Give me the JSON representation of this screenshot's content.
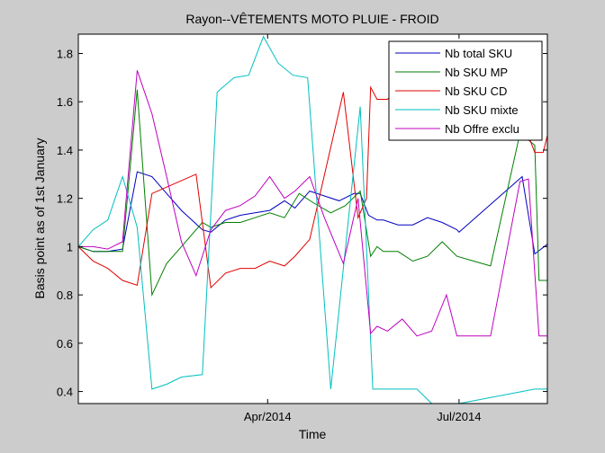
{
  "chart_data": {
    "type": "line",
    "title": "Rayon--VÊTEMENTS MOTO PLUIE - FROID",
    "xlabel": "Time",
    "ylabel": "Basis point as of 1st January",
    "xlim": [
      "2014-01-01",
      "2014-08-12"
    ],
    "ylim": [
      0.35,
      1.88
    ],
    "yticks": [
      0.4,
      0.6,
      0.8,
      1,
      1.2,
      1.4,
      1.6,
      1.8
    ],
    "yticklabels": [
      "0.4",
      "0.6",
      "0.8",
      "1",
      "1.2",
      "1.4",
      "1.6",
      "1.8"
    ],
    "xticks": [
      "2014-04-01",
      "2014-07-01"
    ],
    "xticklabels": [
      "Apr/2014",
      "Jul/2014"
    ],
    "grid": false,
    "legend_position": "top-right",
    "background": "#cccccc",
    "plot_background": "#ffffff",
    "series": [
      {
        "name": "Nb total SKU",
        "color": "#0000bf",
        "points": [
          [
            "2014-01-01",
            1.0
          ],
          [
            "2014-01-08",
            0.98
          ],
          [
            "2014-01-15",
            0.98
          ],
          [
            "2014-01-22",
            0.99
          ],
          [
            "2014-01-29",
            1.31
          ],
          [
            "2014-02-05",
            1.29
          ],
          [
            "2014-02-12",
            1.22
          ],
          [
            "2014-02-19",
            1.15
          ],
          [
            "2014-03-01",
            1.07
          ],
          [
            "2014-03-05",
            1.06
          ],
          [
            "2014-03-12",
            1.11
          ],
          [
            "2014-03-19",
            1.13
          ],
          [
            "2014-03-26",
            1.14
          ],
          [
            "2014-04-02",
            1.15
          ],
          [
            "2014-04-09",
            1.19
          ],
          [
            "2014-04-14",
            1.16
          ],
          [
            "2014-04-21",
            1.23
          ],
          [
            "2014-04-28",
            1.21
          ],
          [
            "2014-05-05",
            1.19
          ],
          [
            "2014-05-12",
            1.22
          ],
          [
            "2014-05-15",
            1.22
          ],
          [
            "2014-05-19",
            1.13
          ],
          [
            "2014-05-23",
            1.11
          ],
          [
            "2014-05-26",
            1.11
          ],
          [
            "2014-06-02",
            1.09
          ],
          [
            "2014-06-09",
            1.09
          ],
          [
            "2014-06-16",
            1.12
          ],
          [
            "2014-06-23",
            1.1
          ],
          [
            "2014-06-30",
            1.07
          ],
          [
            "2014-07-01",
            1.06
          ],
          [
            "2014-07-31",
            1.29
          ],
          [
            "2014-08-06",
            0.97
          ],
          [
            "2014-08-12",
            1.01
          ]
        ]
      },
      {
        "name": "Nb SKU MP",
        "color": "#007f00",
        "points": [
          [
            "2014-01-01",
            1.0
          ],
          [
            "2014-01-08",
            0.98
          ],
          [
            "2014-01-15",
            0.98
          ],
          [
            "2014-01-22",
            0.98
          ],
          [
            "2014-01-29",
            1.65
          ],
          [
            "2014-02-05",
            0.8
          ],
          [
            "2014-02-12",
            0.93
          ],
          [
            "2014-02-19",
            1.0
          ],
          [
            "2014-03-01",
            1.1
          ],
          [
            "2014-03-05",
            1.08
          ],
          [
            "2014-03-12",
            1.1
          ],
          [
            "2014-03-19",
            1.1
          ],
          [
            "2014-03-26",
            1.12
          ],
          [
            "2014-04-02",
            1.14
          ],
          [
            "2014-04-09",
            1.12
          ],
          [
            "2014-04-16",
            1.22
          ],
          [
            "2014-04-23",
            1.18
          ],
          [
            "2014-05-01",
            1.14
          ],
          [
            "2014-05-08",
            1.17
          ],
          [
            "2014-05-15",
            1.23
          ],
          [
            "2014-05-20",
            0.96
          ],
          [
            "2014-05-23",
            1.0
          ],
          [
            "2014-05-26",
            0.98
          ],
          [
            "2014-06-02",
            0.98
          ],
          [
            "2014-06-09",
            0.94
          ],
          [
            "2014-06-16",
            0.96
          ],
          [
            "2014-06-23",
            1.02
          ],
          [
            "2014-06-30",
            0.96
          ],
          [
            "2014-07-08",
            0.94
          ],
          [
            "2014-07-16",
            0.92
          ],
          [
            "2014-07-30",
            1.47
          ],
          [
            "2014-08-06",
            1.42
          ],
          [
            "2014-08-08",
            0.86
          ],
          [
            "2014-08-12",
            0.86
          ]
        ]
      },
      {
        "name": "Nb SKU CD",
        "color": "#e00000",
        "points": [
          [
            "2014-01-01",
            1.0
          ],
          [
            "2014-01-08",
            0.94
          ],
          [
            "2014-01-15",
            0.91
          ],
          [
            "2014-01-22",
            0.86
          ],
          [
            "2014-01-29",
            0.84
          ],
          [
            "2014-02-05",
            1.22
          ],
          [
            "2014-02-26",
            1.3
          ],
          [
            "2014-03-05",
            0.83
          ],
          [
            "2014-03-12",
            0.89
          ],
          [
            "2014-03-19",
            0.91
          ],
          [
            "2014-03-26",
            0.91
          ],
          [
            "2014-04-02",
            0.94
          ],
          [
            "2014-04-09",
            0.92
          ],
          [
            "2014-04-14",
            0.96
          ],
          [
            "2014-04-21",
            1.03
          ],
          [
            "2014-05-07",
            1.64
          ],
          [
            "2014-05-14",
            1.12
          ],
          [
            "2014-05-18",
            1.2
          ],
          [
            "2014-05-20",
            1.66
          ],
          [
            "2014-05-23",
            1.61
          ],
          [
            "2014-05-28",
            1.61
          ],
          [
            "2014-06-04",
            1.67
          ],
          [
            "2014-06-11",
            1.65
          ],
          [
            "2014-07-30",
            1.55
          ],
          [
            "2014-08-06",
            1.39
          ],
          [
            "2014-08-10",
            1.39
          ],
          [
            "2014-08-12",
            1.46
          ]
        ]
      },
      {
        "name": "Nb SKU mixte",
        "color": "#00bfbf",
        "points": [
          [
            "2014-01-01",
            1.0
          ],
          [
            "2014-01-08",
            1.07
          ],
          [
            "2014-01-15",
            1.11
          ],
          [
            "2014-01-22",
            1.29
          ],
          [
            "2014-01-29",
            1.08
          ],
          [
            "2014-02-05",
            0.41
          ],
          [
            "2014-02-12",
            0.43
          ],
          [
            "2014-02-19",
            0.46
          ],
          [
            "2014-03-01",
            0.47
          ],
          [
            "2014-03-08",
            1.64
          ],
          [
            "2014-03-16",
            1.7
          ],
          [
            "2014-03-23",
            1.71
          ],
          [
            "2014-03-30",
            1.87
          ],
          [
            "2014-04-06",
            1.76
          ],
          [
            "2014-04-13",
            1.71
          ],
          [
            "2014-04-20",
            1.7
          ],
          [
            "2014-05-01",
            0.41
          ],
          [
            "2014-05-15",
            1.58
          ],
          [
            "2014-05-21",
            0.41
          ],
          [
            "2014-06-11",
            0.41
          ],
          [
            "2014-06-18",
            0.35
          ],
          [
            "2014-07-01",
            0.35
          ],
          [
            "2014-08-06",
            0.41
          ],
          [
            "2014-08-12",
            0.41
          ]
        ]
      },
      {
        "name": "Nb Offre exclu",
        "color": "#bf00bf",
        "points": [
          [
            "2014-01-01",
            1.0
          ],
          [
            "2014-01-08",
            1.0
          ],
          [
            "2014-01-15",
            0.99
          ],
          [
            "2014-01-22",
            1.02
          ],
          [
            "2014-01-29",
            1.73
          ],
          [
            "2014-02-05",
            1.55
          ],
          [
            "2014-02-12",
            1.29
          ],
          [
            "2014-02-19",
            1.02
          ],
          [
            "2014-02-26",
            0.88
          ],
          [
            "2014-03-05",
            1.07
          ],
          [
            "2014-03-12",
            1.15
          ],
          [
            "2014-03-19",
            1.17
          ],
          [
            "2014-03-26",
            1.21
          ],
          [
            "2014-04-02",
            1.29
          ],
          [
            "2014-04-09",
            1.2
          ],
          [
            "2014-04-14",
            1.23
          ],
          [
            "2014-04-21",
            1.29
          ],
          [
            "2014-04-28",
            1.12
          ],
          [
            "2014-05-07",
            0.93
          ],
          [
            "2014-05-14",
            1.2
          ],
          [
            "2014-05-20",
            0.64
          ],
          [
            "2014-05-23",
            0.67
          ],
          [
            "2014-05-28",
            0.65
          ],
          [
            "2014-06-04",
            0.7
          ],
          [
            "2014-06-11",
            0.63
          ],
          [
            "2014-06-18",
            0.65
          ],
          [
            "2014-06-25",
            0.8
          ],
          [
            "2014-06-30",
            0.63
          ],
          [
            "2014-07-07",
            0.63
          ],
          [
            "2014-07-16",
            0.63
          ],
          [
            "2014-07-30",
            1.27
          ],
          [
            "2014-08-03",
            1.28
          ],
          [
            "2014-08-08",
            0.63
          ],
          [
            "2014-08-12",
            0.63
          ]
        ]
      }
    ]
  }
}
